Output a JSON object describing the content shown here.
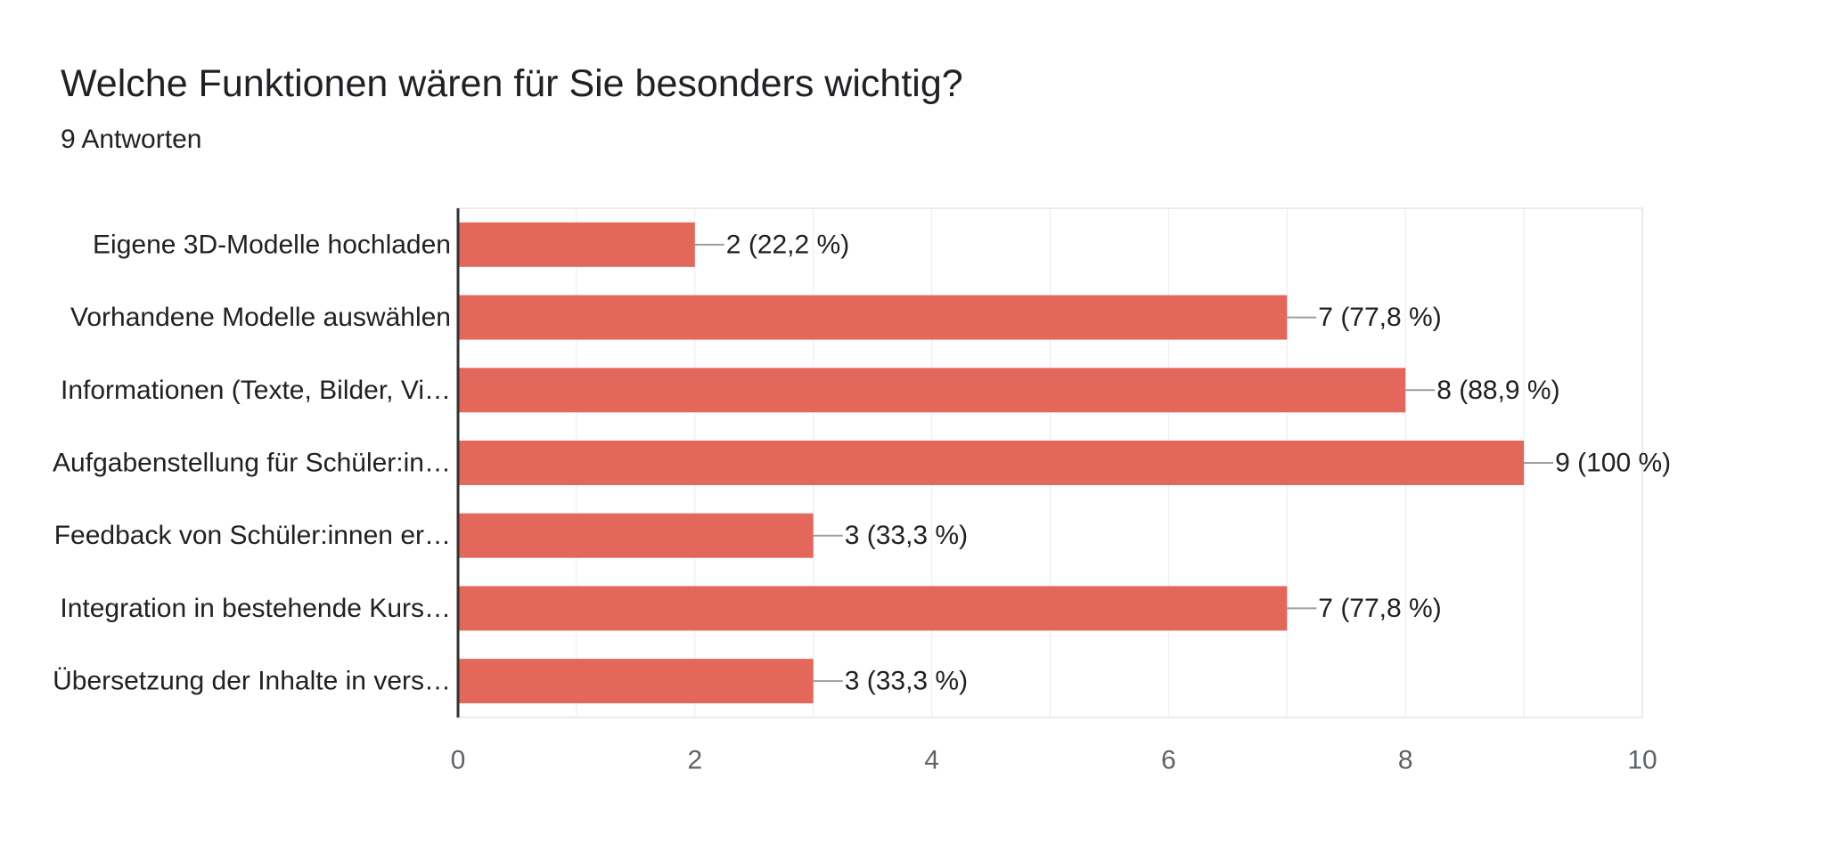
{
  "header": {
    "question": "Welche Funktionen wären für Sie besonders wichtig?",
    "responses": "9 Antworten"
  },
  "colors": {
    "bar": "#e3685b",
    "grid": "#ebebeb",
    "axis": "#333333",
    "connector": "#9e9e9e",
    "tick_text": "#5f6368",
    "label_text": "#202124"
  },
  "chart_data": {
    "type": "bar",
    "orientation": "horizontal",
    "categories": [
      "Eigene 3D-Modelle hochladen",
      "Vorhandene Modelle auswählen",
      "Informationen (Texte, Bilder, Vi…",
      "Aufgabenstellung für Schüler:in…",
      "Feedback von Schüler:innen er…",
      "Integration in bestehende Kurs…",
      "Übersetzung der Inhalte in vers…"
    ],
    "values": [
      2,
      7,
      8,
      9,
      3,
      7,
      3
    ],
    "data_labels": [
      "2 (22,2 %)",
      "7 (77,8 %)",
      "8 (88,9 %)",
      "9 (100 %)",
      "3 (33,3 %)",
      "7 (77,8 %)",
      "3 (33,3 %)"
    ],
    "xlim": [
      0,
      10
    ],
    "xticks": [
      0,
      2,
      4,
      6,
      8,
      10
    ],
    "xtick_labels": [
      "0",
      "2",
      "4",
      "6",
      "8",
      "10"
    ],
    "minor_gridlines": true,
    "legend": "none"
  }
}
